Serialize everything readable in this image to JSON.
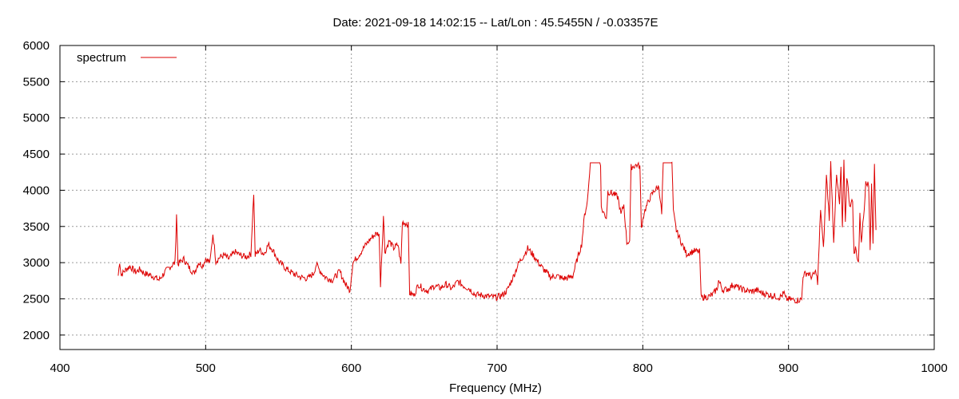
{
  "chart_data": {
    "type": "line",
    "title": "Date: 2021-09-18 14:02:15  --  Lat/Lon : 45.5455N / -0.03357E",
    "xlabel": "Frequency (MHz)",
    "ylabel": "",
    "xlim": [
      400,
      1000
    ],
    "ylim": [
      1800,
      6000
    ],
    "xticks": [
      "400",
      "500",
      "600",
      "700",
      "800",
      "900",
      "1000"
    ],
    "yticks": [
      "2000",
      "2500",
      "3000",
      "3500",
      "4000",
      "4500",
      "5000",
      "5500",
      "6000"
    ],
    "grid": true,
    "legend_position": "top-left",
    "series": [
      {
        "name": "spectrum",
        "color": "#dd0000",
        "points": [
          [
            440,
            2820
          ],
          [
            441,
            3020
          ],
          [
            442,
            2830
          ],
          [
            445,
            2900
          ],
          [
            448,
            2950
          ],
          [
            452,
            2870
          ],
          [
            455,
            2910
          ],
          [
            458,
            2850
          ],
          [
            462,
            2830
          ],
          [
            465,
            2800
          ],
          [
            468,
            2760
          ],
          [
            472,
            2870
          ],
          [
            476,
            2950
          ],
          [
            479,
            3000
          ],
          [
            480,
            3680
          ],
          [
            481,
            2980
          ],
          [
            485,
            3050
          ],
          [
            488,
            2950
          ],
          [
            492,
            2850
          ],
          [
            495,
            3000
          ],
          [
            498,
            2960
          ],
          [
            500,
            3060
          ],
          [
            503,
            3000
          ],
          [
            505,
            3400
          ],
          [
            507,
            3020
          ],
          [
            510,
            3080
          ],
          [
            513,
            3100
          ],
          [
            516,
            3050
          ],
          [
            520,
            3150
          ],
          [
            524,
            3100
          ],
          [
            528,
            3080
          ],
          [
            531,
            3120
          ],
          [
            533,
            3960
          ],
          [
            534,
            3100
          ],
          [
            537,
            3180
          ],
          [
            540,
            3120
          ],
          [
            543,
            3250
          ],
          [
            546,
            3180
          ],
          [
            550,
            3020
          ],
          [
            555,
            2920
          ],
          [
            560,
            2850
          ],
          [
            565,
            2800
          ],
          [
            570,
            2780
          ],
          [
            574,
            2850
          ],
          [
            576,
            2980
          ],
          [
            578,
            2900
          ],
          [
            582,
            2800
          ],
          [
            587,
            2760
          ],
          [
            592,
            2880
          ],
          [
            596,
            2700
          ],
          [
            599,
            2620
          ],
          [
            601,
            3000
          ],
          [
            605,
            3100
          ],
          [
            610,
            3250
          ],
          [
            614,
            3350
          ],
          [
            617,
            3400
          ],
          [
            619,
            3400
          ],
          [
            620,
            2700
          ],
          [
            622,
            3650
          ],
          [
            623,
            3150
          ],
          [
            626,
            3300
          ],
          [
            629,
            3200
          ],
          [
            632,
            3250
          ],
          [
            634,
            2980
          ],
          [
            635,
            3560
          ],
          [
            638,
            3540
          ],
          [
            639,
            3520
          ],
          [
            640,
            2580
          ],
          [
            643,
            2550
          ],
          [
            646,
            2700
          ],
          [
            649,
            2640
          ],
          [
            653,
            2610
          ],
          [
            657,
            2680
          ],
          [
            661,
            2650
          ],
          [
            665,
            2700
          ],
          [
            669,
            2640
          ],
          [
            673,
            2740
          ],
          [
            677,
            2680
          ],
          [
            681,
            2640
          ],
          [
            685,
            2560
          ],
          [
            690,
            2550
          ],
          [
            695,
            2530
          ],
          [
            700,
            2520
          ],
          [
            704,
            2560
          ],
          [
            707,
            2620
          ],
          [
            711,
            2800
          ],
          [
            715,
            3000
          ],
          [
            719,
            3120
          ],
          [
            721,
            3200
          ],
          [
            725,
            3100
          ],
          [
            729,
            2980
          ],
          [
            733,
            2880
          ],
          [
            737,
            2800
          ],
          [
            741,
            2820
          ],
          [
            745,
            2780
          ],
          [
            749,
            2790
          ],
          [
            752,
            2820
          ],
          [
            755,
            3050
          ],
          [
            758,
            3250
          ],
          [
            760,
            3650
          ],
          [
            762,
            3850
          ],
          [
            764,
            4380
          ],
          [
            767,
            4380
          ],
          [
            771,
            4380
          ],
          [
            771.5,
            3750
          ],
          [
            775,
            3620
          ],
          [
            776,
            3980
          ],
          [
            780,
            3950
          ],
          [
            783,
            3900
          ],
          [
            785,
            3660
          ],
          [
            787,
            3800
          ],
          [
            789,
            3280
          ],
          [
            791,
            3300
          ],
          [
            792,
            4320
          ],
          [
            796,
            4350
          ],
          [
            798,
            4330
          ],
          [
            799,
            3480
          ],
          [
            801,
            3700
          ],
          [
            805,
            3900
          ],
          [
            808,
            4000
          ],
          [
            811,
            4050
          ],
          [
            812,
            3880
          ],
          [
            813,
            3670
          ],
          [
            814,
            4380
          ],
          [
            818,
            4380
          ],
          [
            820,
            4380
          ],
          [
            821,
            3700
          ],
          [
            823,
            3450
          ],
          [
            826,
            3300
          ],
          [
            830,
            3120
          ],
          [
            835,
            3160
          ],
          [
            839,
            3150
          ],
          [
            840,
            2520
          ],
          [
            845,
            2530
          ],
          [
            848,
            2560
          ],
          [
            851,
            2640
          ],
          [
            852,
            2750
          ],
          [
            855,
            2620
          ],
          [
            859,
            2640
          ],
          [
            862,
            2700
          ],
          [
            866,
            2650
          ],
          [
            870,
            2620
          ],
          [
            874,
            2600
          ],
          [
            878,
            2620
          ],
          [
            882,
            2580
          ],
          [
            886,
            2560
          ],
          [
            890,
            2540
          ],
          [
            894,
            2520
          ],
          [
            897,
            2580
          ],
          [
            898,
            2500
          ],
          [
            902,
            2490
          ],
          [
            905,
            2480
          ],
          [
            909,
            2490
          ],
          [
            910,
            2830
          ],
          [
            913,
            2860
          ],
          [
            916,
            2800
          ],
          [
            919,
            2880
          ],
          [
            920,
            2700
          ],
          [
            922,
            3750
          ],
          [
            924,
            3180
          ],
          [
            926,
            4200
          ],
          [
            928,
            3620
          ],
          [
            929,
            4380
          ],
          [
            931,
            3300
          ],
          [
            933,
            4200
          ],
          [
            935,
            3800
          ],
          [
            936,
            4320
          ],
          [
            937,
            3450
          ],
          [
            938,
            4380
          ],
          [
            939,
            3550
          ],
          [
            940,
            4200
          ],
          [
            942,
            3800
          ],
          [
            944,
            3850
          ],
          [
            945,
            3100
          ],
          [
            946,
            3200
          ],
          [
            948,
            3000
          ],
          [
            949,
            3650
          ],
          [
            950,
            3300
          ],
          [
            952,
            3750
          ],
          [
            953,
            4150
          ],
          [
            955,
            4050
          ],
          [
            956,
            3200
          ],
          [
            957,
            4100
          ],
          [
            958,
            3250
          ],
          [
            959,
            4350
          ],
          [
            960,
            3450
          ]
        ]
      }
    ]
  }
}
